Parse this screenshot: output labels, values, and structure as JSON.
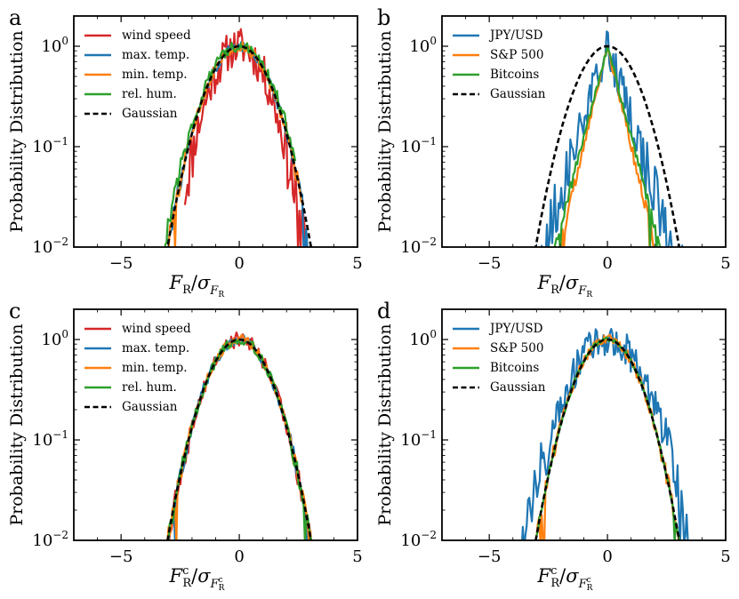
{
  "figure": {
    "ylabel": "Probability Distribution"
  },
  "chart_data": [
    {
      "panel": "a",
      "type": "line",
      "xlabel_main": "F",
      "xlabel_sub": "R",
      "xlabel_den": "σ",
      "xlabel_den_sub": "F",
      "xlabel_den_subsub": "R",
      "ylabel": "Probability Distribution",
      "xlim": [
        -7,
        5
      ],
      "ylim": [
        0.01,
        2
      ],
      "yscale": "log",
      "xticks": [
        -5,
        0,
        5
      ],
      "yticks": [
        0.01,
        0.1,
        1
      ],
      "legend": "top-left",
      "series": [
        {
          "name": "wind speed",
          "color": "#d62728",
          "width": 0.9,
          "spread": 1.0,
          "noise": 0.45,
          "xmin": -2.3,
          "xmax": 3.8,
          "style": "solid"
        },
        {
          "name": "max. temp.",
          "color": "#1f77b4",
          "width": 1.0,
          "spread": 1.0,
          "noise": 0.12,
          "xmin": -3.0,
          "xmax": 2.9,
          "style": "solid"
        },
        {
          "name": "min. temp.",
          "color": "#ff7f0e",
          "width": 1.0,
          "spread": 1.0,
          "noise": 0.12,
          "xmin": -3.1,
          "xmax": 2.7,
          "style": "solid"
        },
        {
          "name": "rel. hum.",
          "color": "#2ca02c",
          "width": 1.05,
          "spread": 1.0,
          "noise": 0.14,
          "xmin": -3.9,
          "xmax": 2.4,
          "style": "solid"
        },
        {
          "name": "Gaussian",
          "color": "#000000",
          "width": 1.0,
          "spread": 1.0,
          "noise": 0,
          "xmin": -3.3,
          "xmax": 3.3,
          "style": "dashed"
        }
      ]
    },
    {
      "panel": "b",
      "type": "line",
      "xlabel_main": "F",
      "xlabel_sub": "R",
      "xlabel_den": "σ",
      "xlabel_den_sub": "F",
      "xlabel_den_subsub": "R",
      "ylabel": "Probability Distribution",
      "xlim": [
        -7,
        5
      ],
      "ylim": [
        0.01,
        2
      ],
      "yscale": "log",
      "xticks": [
        -5,
        0,
        5
      ],
      "yticks": [
        0.01,
        0.1,
        1
      ],
      "legend": "top-left",
      "series": [
        {
          "name": "JPY/USD",
          "color": "#1f77b4",
          "width": 0.75,
          "spread": 1.0,
          "noise": 0.45,
          "xmin": -5.2,
          "xmax": 3.3,
          "style": "solid",
          "laplace": true
        },
        {
          "name": "S&P 500",
          "color": "#ff7f0e",
          "width": 0.55,
          "spread": 1.0,
          "noise": 0.1,
          "xmin": -3.0,
          "xmax": 3.0,
          "style": "solid",
          "laplace": true
        },
        {
          "name": "Bitcoins",
          "color": "#2ca02c",
          "width": 0.6,
          "spread": 1.0,
          "noise": 0.08,
          "xmin": -2.6,
          "xmax": 3.1,
          "style": "solid",
          "laplace": true
        },
        {
          "name": "Gaussian",
          "color": "#000000",
          "width": 1.0,
          "spread": 1.0,
          "noise": 0,
          "xmin": -3.2,
          "xmax": 3.2,
          "style": "dashed"
        }
      ]
    },
    {
      "panel": "c",
      "type": "line",
      "xlabel_main": "F",
      "xlabel_sub": "R",
      "xlabel_sup": "c",
      "xlabel_den": "σ",
      "xlabel_den_sub": "F",
      "xlabel_den_subsub": "R",
      "xlabel_den_sup": "c",
      "ylabel": "Probability Distribution",
      "xlim": [
        -7,
        5
      ],
      "ylim": [
        0.01,
        2
      ],
      "yscale": "log",
      "xticks": [
        -5,
        0,
        5
      ],
      "yticks": [
        0.01,
        0.1,
        1
      ],
      "legend": "top-left",
      "series": [
        {
          "name": "wind speed",
          "color": "#d62728",
          "width": 1.0,
          "spread": 1.0,
          "noise": 0.18,
          "xmin": -3.2,
          "xmax": 3.3,
          "style": "solid"
        },
        {
          "name": "max. temp.",
          "color": "#1f77b4",
          "width": 1.0,
          "spread": 1.0,
          "noise": 0.12,
          "xmin": -3.1,
          "xmax": 3.2,
          "style": "solid"
        },
        {
          "name": "min. temp.",
          "color": "#ff7f0e",
          "width": 1.0,
          "spread": 1.0,
          "noise": 0.12,
          "xmin": -3.1,
          "xmax": 3.1,
          "style": "solid"
        },
        {
          "name": "rel. hum.",
          "color": "#2ca02c",
          "width": 1.0,
          "spread": 1.0,
          "noise": 0.12,
          "xmin": -3.0,
          "xmax": 3.1,
          "style": "solid"
        },
        {
          "name": "Gaussian",
          "color": "#000000",
          "width": 1.0,
          "spread": 1.0,
          "noise": 0,
          "xmin": -3.1,
          "xmax": 3.1,
          "style": "dashed"
        }
      ]
    },
    {
      "panel": "d",
      "type": "line",
      "xlabel_main": "F",
      "xlabel_sub": "R",
      "xlabel_sup": "c",
      "xlabel_den": "σ",
      "xlabel_den_sub": "F",
      "xlabel_den_subsub": "R",
      "xlabel_den_sup": "c",
      "ylabel": "Probability Distribution",
      "xlim": [
        -7,
        5
      ],
      "ylim": [
        0.01,
        2
      ],
      "yscale": "log",
      "xticks": [
        -5,
        0,
        5
      ],
      "yticks": [
        0.01,
        0.1,
        1
      ],
      "legend": "top-left",
      "series": [
        {
          "name": "JPY/USD",
          "color": "#1f77b4",
          "width": 1.15,
          "spread": 1.0,
          "noise": 0.4,
          "xmin": -6.0,
          "xmax": 4.8,
          "style": "solid"
        },
        {
          "name": "S&P 500",
          "color": "#ff7f0e",
          "width": 1.0,
          "spread": 1.0,
          "noise": 0.12,
          "xmin": -3.0,
          "xmax": 3.2,
          "style": "solid"
        },
        {
          "name": "Bitcoins",
          "color": "#2ca02c",
          "width": 1.0,
          "spread": 1.0,
          "noise": 0.05,
          "xmin": -3.1,
          "xmax": 3.1,
          "style": "solid"
        },
        {
          "name": "Gaussian",
          "color": "#000000",
          "width": 1.0,
          "spread": 1.0,
          "noise": 0,
          "xmin": -3.1,
          "xmax": 3.1,
          "style": "dashed"
        }
      ]
    }
  ]
}
